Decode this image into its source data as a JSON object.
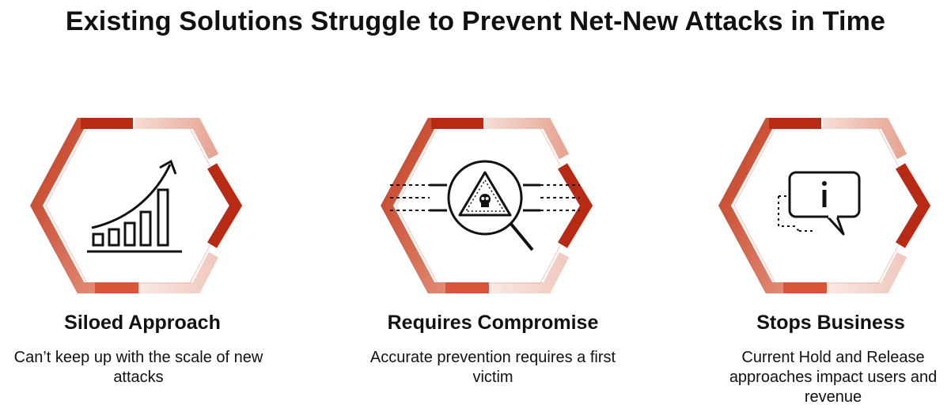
{
  "title": "Existing Solutions Struggle to Prevent Net-New Attacks in Time",
  "colors": {
    "accent": "#b82a14",
    "accent_light": "#e9b3a4",
    "ink": "#111111"
  },
  "cards": [
    {
      "icon": "growth-bar-chart-icon",
      "title": "Siloed Approach",
      "description": "Can’t keep up with the scale of new attacks"
    },
    {
      "icon": "magnified-threat-icon",
      "title": "Requires Compromise",
      "description": "Accurate prevention requires a first victim"
    },
    {
      "icon": "info-chat-bubble-icon",
      "title": "Stops Business",
      "description": "Current Hold and Release approaches impact users and revenue"
    }
  ]
}
